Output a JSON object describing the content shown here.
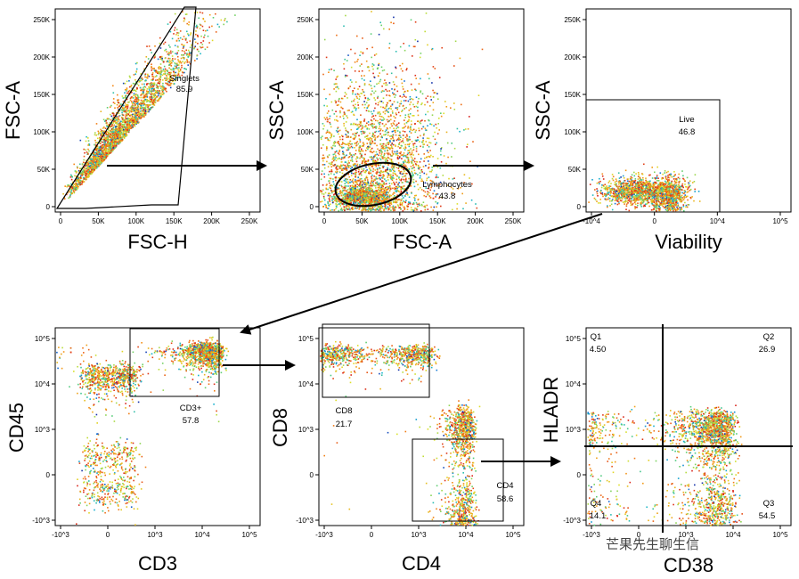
{
  "watermark": "芒果先生聊生信",
  "chart_data": [
    {
      "type": "scatter",
      "panel": 1,
      "xlabel": "FSC-H",
      "ylabel": "FSC-A",
      "x_ticks": [
        "0",
        "50K",
        "100K",
        "150K",
        "200K",
        "250K"
      ],
      "y_ticks": [
        "0",
        "50K",
        "100K",
        "150K",
        "200K",
        "250K"
      ],
      "xlim": [
        0,
        262144
      ],
      "ylim": [
        0,
        262144
      ],
      "populations": [
        {
          "shape": "diagonal",
          "center": [
            60000,
            62000
          ],
          "extent": 200000,
          "count": 2600,
          "density": "high"
        }
      ],
      "gate": {
        "name": "Singlets",
        "percent": "85.9",
        "shape": "polygon",
        "points": [
          [
            0,
            2000
          ],
          [
            185000,
            262144
          ],
          [
            178000,
            262144
          ],
          [
            0,
            0
          ]
        ]
      }
    },
    {
      "type": "scatter",
      "panel": 2,
      "xlabel": "FSC-A",
      "ylabel": "SSC-A",
      "x_ticks": [
        "0",
        "50K",
        "100K",
        "150K",
        "200K",
        "250K"
      ],
      "y_ticks": [
        "0",
        "50K",
        "100K",
        "150K",
        "200K",
        "250K"
      ],
      "xlim": [
        0,
        262144
      ],
      "ylim": [
        0,
        262144
      ],
      "populations": [
        {
          "shape": "cloud",
          "center": [
            70000,
            50000
          ],
          "spread": [
            45000,
            55000
          ],
          "count": 2600
        },
        {
          "shape": "cluster",
          "center": [
            55000,
            18000
          ],
          "spread": [
            18000,
            7000
          ],
          "count": 900
        }
      ],
      "gate": {
        "name": "Lymphocytes",
        "percent": "43.8",
        "shape": "ellipse",
        "center": [
          70000,
          27000
        ],
        "radii": [
          45000,
          22000
        ]
      }
    },
    {
      "type": "scatter",
      "panel": 3,
      "xlabel": "Viability",
      "ylabel": "SSC-A",
      "x_ticks": [
        "-10^4",
        "0",
        "10^4",
        "10^5"
      ],
      "y_ticks": [
        "0",
        "50K",
        "100K",
        "150K",
        "200K",
        "250K"
      ],
      "ylim": [
        0,
        262144
      ],
      "populations": [
        {
          "shape": "band",
          "center": [
            2200,
            25000
          ],
          "spread": [
            12000,
            9000
          ],
          "count": 1000
        },
        {
          "shape": "cluster",
          "center": [
            25000,
            22000
          ],
          "spread": [
            7000,
            12000
          ],
          "count": 800
        }
      ],
      "gate": {
        "name": "Live",
        "percent": "46.8",
        "shape": "rectangle",
        "x": [
          -30000,
          8000
        ],
        "y": [
          0,
          145000
        ]
      }
    },
    {
      "type": "scatter",
      "panel": 4,
      "xlabel": "CD3",
      "ylabel": "CD45",
      "x_ticks": [
        "-10^3",
        "0",
        "10^3",
        "10^4",
        "10^5"
      ],
      "y_ticks": [
        "-10^3",
        "0",
        "10^3",
        "10^4",
        "10^5"
      ],
      "populations": [
        {
          "shape": "cluster",
          "center": [
            0,
            15000
          ],
          "spread": [
            150,
            7000
          ],
          "count": 700
        },
        {
          "shape": "cluster",
          "center": [
            0,
            0
          ],
          "spread": [
            150,
            200
          ],
          "count": 500
        },
        {
          "shape": "cluster",
          "center": [
            12000,
            55000
          ],
          "spread": [
            8000,
            20000
          ],
          "count": 1200
        }
      ],
      "gate": {
        "name": "CD3+",
        "percent": "57.8",
        "shape": "rectangle",
        "x": [
          1000,
          100000
        ],
        "y": [
          5000,
          200000
        ]
      }
    },
    {
      "type": "scatter",
      "panel": 5,
      "xlabel": "CD4",
      "ylabel": "CD8",
      "x_ticks": [
        "-10^3",
        "0",
        "10^3",
        "10^4",
        "10^5"
      ],
      "y_ticks": [
        "-10^3",
        "0",
        "10^3",
        "10^4",
        "10^5"
      ],
      "populations": [
        {
          "shape": "band",
          "center": [
            100,
            50000
          ],
          "spread": [
            800,
            15000
          ],
          "count": 900
        },
        {
          "shape": "column",
          "center": [
            9000,
            300
          ],
          "spread": [
            3500,
            1200
          ],
          "count": 1200
        }
      ],
      "gates": [
        {
          "name": "CD8",
          "percent": "21.7",
          "shape": "rectangle",
          "x": [
            -1500,
            3000
          ],
          "y": [
            3000,
            200000
          ]
        },
        {
          "name": "CD4",
          "percent": "58.6",
          "shape": "rectangle",
          "x": [
            2500,
            50000
          ],
          "y": [
            -1500,
            1500
          ]
        }
      ]
    },
    {
      "type": "scatter",
      "panel": 6,
      "xlabel": "CD38",
      "ylabel": "HLADR",
      "x_ticks": [
        "-10^3",
        "0",
        "10^3",
        "10^4",
        "10^5"
      ],
      "y_ticks": [
        "-10^3",
        "0",
        "10^3",
        "10^4",
        "10^5"
      ],
      "populations": [
        {
          "shape": "cloud",
          "center": [
            2500,
            500
          ],
          "spread": [
            4000,
            900
          ],
          "count": 2600
        }
      ],
      "quadrants": {
        "x": 1000,
        "y": 1000
      },
      "quadrant_labels": [
        {
          "name": "Q1",
          "percent": "4.50",
          "position": "top-left"
        },
        {
          "name": "Q2",
          "percent": "26.9",
          "position": "top-right"
        },
        {
          "name": "Q3",
          "percent": "54.5",
          "position": "bottom-right"
        },
        {
          "name": "Q4",
          "percent": "14.1",
          "position": "bottom-left"
        }
      ]
    }
  ]
}
